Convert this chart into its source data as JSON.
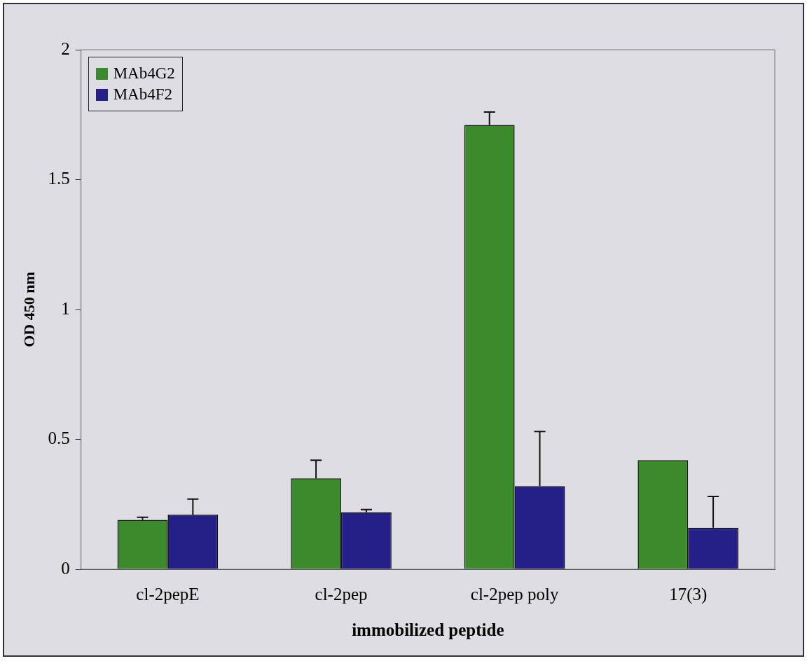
{
  "chart_data": {
    "type": "bar",
    "xlabel": "immobilized peptide",
    "ylabel": "OD 450 nm",
    "categories": [
      "cl-2pepE",
      "cl-2pep",
      "cl-2pep poly",
      "17(3)"
    ],
    "series": [
      {
        "name": "MAb4G2",
        "color": "#3b8a2b",
        "values": [
          0.19,
          0.35,
          1.71,
          0.42
        ],
        "errors": [
          [
            0.19,
            0.2
          ],
          [
            0.35,
            0.42
          ],
          [
            1.71,
            1.76
          ],
          null
        ]
      },
      {
        "name": "MAb4F2",
        "color": "#251f88",
        "values": [
          0.21,
          0.22,
          0.32,
          0.16
        ],
        "errors": [
          [
            0.21,
            0.27
          ],
          [
            0.22,
            0.23
          ],
          [
            0.32,
            0.53
          ],
          [
            0.16,
            0.28
          ]
        ]
      }
    ],
    "ylim": [
      0,
      2
    ],
    "yticks": [
      0,
      0.5,
      1,
      1.5,
      2
    ],
    "grid": false,
    "legend": "top left"
  }
}
